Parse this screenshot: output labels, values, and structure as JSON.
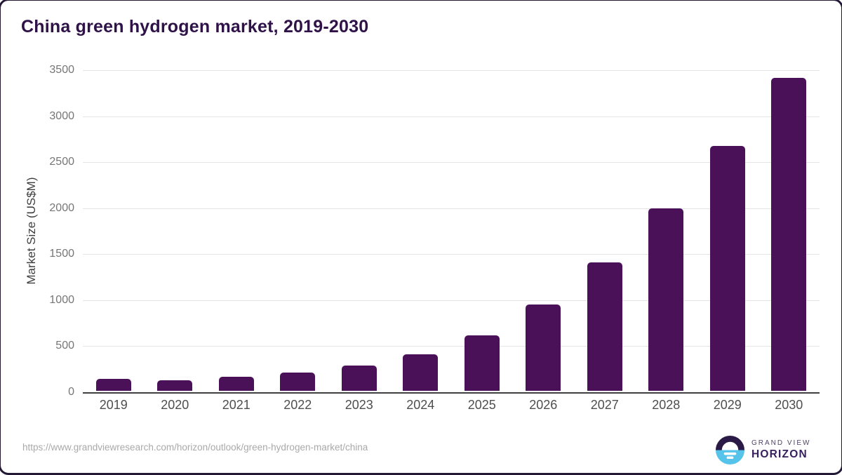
{
  "title": "China green hydrogen market, 2019-2030",
  "footer": {
    "source_url": "https://www.grandviewresearch.com/horizon/outlook/green-hydrogen-market/china"
  },
  "logo": {
    "icon": "sun-over-horizon-icon",
    "line1": "GRAND VIEW",
    "line2": "HORIZON"
  },
  "chart_data": {
    "type": "bar",
    "title": "China green hydrogen market, 2019-2030",
    "xlabel": "",
    "ylabel": "Market Size (US$M)",
    "categories": [
      "2019",
      "2020",
      "2021",
      "2022",
      "2023",
      "2024",
      "2025",
      "2026",
      "2027",
      "2028",
      "2029",
      "2030"
    ],
    "values": [
      130,
      115,
      150,
      200,
      275,
      400,
      605,
      940,
      1405,
      1990,
      2675,
      3415
    ],
    "ylim": [
      0,
      3500
    ],
    "yticks": [
      0,
      500,
      1000,
      1500,
      2000,
      2500,
      3000,
      3500
    ],
    "grid": true,
    "legend": false,
    "bar_color": "#4a1158"
  },
  "colors": {
    "bar": "#4a1158",
    "title_text": "#2e1248",
    "gridline": "#e4e4e4",
    "axis_line": "#3f3f3f",
    "ytick_text": "#767676",
    "xtick_text": "#4e4e4e",
    "url_text": "#a9a9a9",
    "logo_dark": "#2b1a45",
    "logo_blue": "#56c3ea"
  }
}
